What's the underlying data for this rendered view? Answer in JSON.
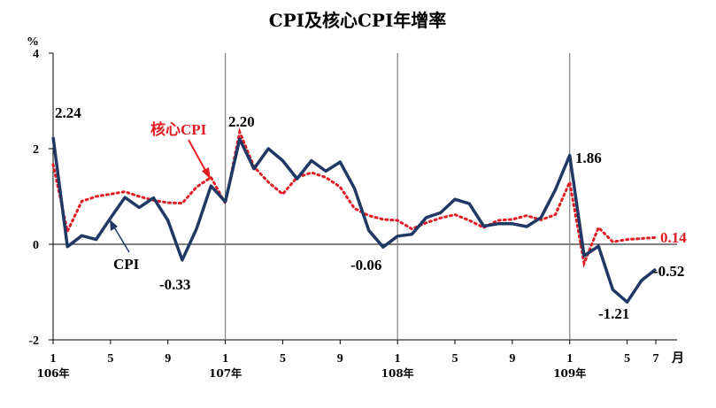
{
  "chart_data": {
    "type": "line",
    "title": "CPI及核心CPI年增率",
    "ylabel": "%",
    "xunit": "月",
    "ylim": [
      -2,
      4
    ],
    "yticks": [
      -2,
      0,
      2,
      4
    ],
    "x_tick_labels": [
      "1",
      "5",
      "9",
      "1",
      "5",
      "9",
      "1",
      "5",
      "9",
      "1",
      "5",
      "7"
    ],
    "year_labels": [
      "106年",
      "107年",
      "108年",
      "109年"
    ],
    "series": [
      {
        "name": "CPI",
        "color": "#1f3864",
        "values": [
          2.24,
          -0.05,
          0.18,
          0.1,
          0.55,
          0.98,
          0.77,
          0.97,
          0.5,
          -0.33,
          0.33,
          1.22,
          0.89,
          2.2,
          1.58,
          2.0,
          1.75,
          1.37,
          1.75,
          1.53,
          1.72,
          1.17,
          0.29,
          -0.06,
          0.17,
          0.21,
          0.56,
          0.66,
          0.94,
          0.85,
          0.38,
          0.43,
          0.43,
          0.37,
          0.56,
          1.14,
          1.86,
          -0.24,
          -0.04,
          -0.95,
          -1.21,
          -0.76,
          -0.52
        ]
      },
      {
        "name": "核心CPI",
        "color": "#e31b23",
        "values": [
          1.67,
          0.27,
          0.9,
          1.0,
          1.05,
          1.1,
          1.0,
          0.92,
          0.87,
          0.86,
          1.2,
          1.4,
          0.86,
          2.35,
          1.62,
          1.3,
          1.05,
          1.4,
          1.5,
          1.4,
          1.2,
          0.75,
          0.6,
          0.52,
          0.5,
          0.32,
          0.45,
          0.55,
          0.62,
          0.5,
          0.35,
          0.5,
          0.52,
          0.6,
          0.51,
          0.62,
          1.3,
          -0.4,
          0.35,
          0.05,
          0.1,
          0.12,
          0.14
        ]
      }
    ],
    "annotations": {
      "cpi_start": "2.24",
      "cpi_low": "-0.33",
      "cpi_107": "2.20",
      "cpi_108": "-0.06",
      "cpi_109": "1.86",
      "cpi_min": "-1.21",
      "cpi_last": "-0.52",
      "core_last": "0.14",
      "cpi_name": "CPI",
      "core_name": "核心CPI"
    }
  }
}
